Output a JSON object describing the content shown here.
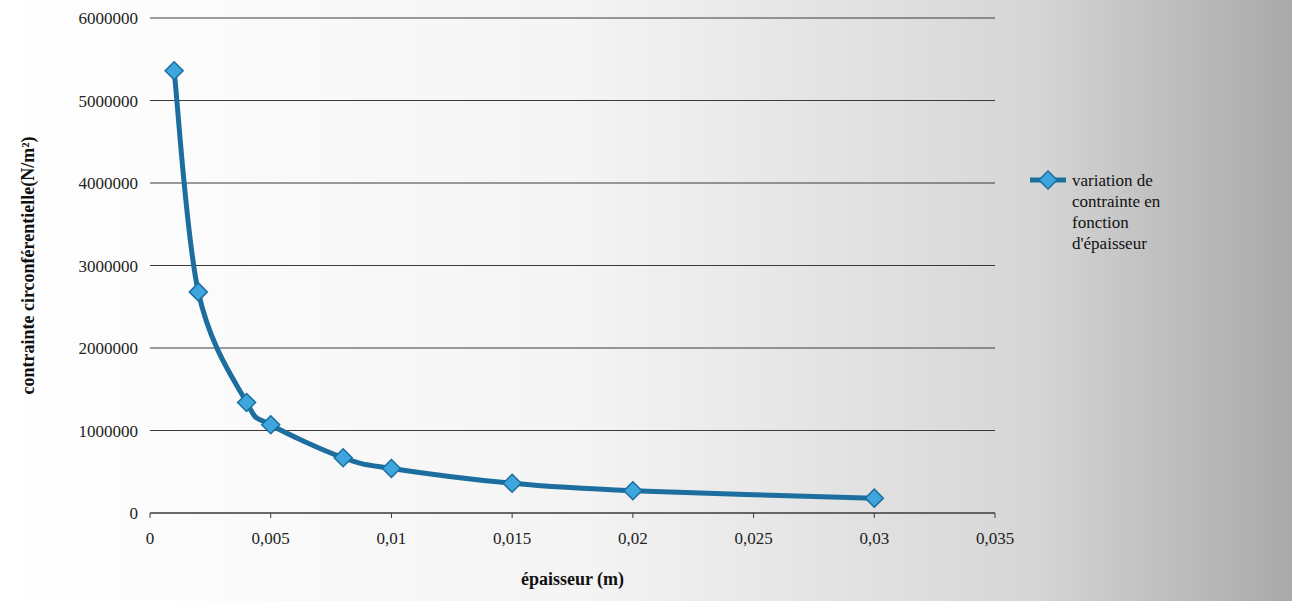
{
  "chart_data": {
    "type": "line",
    "x_label": "épaisseur (m)",
    "y_label": "contrainte circonférentielle(N/m²)",
    "x": [
      0.001,
      0.002,
      0.004,
      0.005,
      0.008,
      0.01,
      0.015,
      0.02,
      0.03
    ],
    "series": [
      {
        "name": "variation de contrainte en fonction d'épaisseur",
        "color": "#1b6e9e",
        "marker": "diamond",
        "line_style": "solid",
        "values": [
          5360000,
          2680000,
          1340000,
          1070000,
          670000,
          540000,
          360000,
          270000,
          180000
        ]
      }
    ],
    "xlim": [
      0,
      0.035
    ],
    "xticks": [
      0,
      {
        "value": 0.005,
        "label": "0,005"
      },
      {
        "value": 0.01,
        "label": "0,01"
      },
      {
        "value": 0.015,
        "label": "0,015"
      },
      {
        "value": 0.02,
        "label": "0,02"
      },
      {
        "value": 0.025,
        "label": "0,025"
      },
      {
        "value": 0.03,
        "label": "0,03"
      },
      {
        "value": 0.035,
        "label": "0,035"
      }
    ],
    "ylim": [
      0,
      6000000
    ],
    "yticks": [
      0,
      1000000,
      2000000,
      3000000,
      4000000,
      5000000,
      6000000
    ],
    "grid": true,
    "legend": "right"
  }
}
